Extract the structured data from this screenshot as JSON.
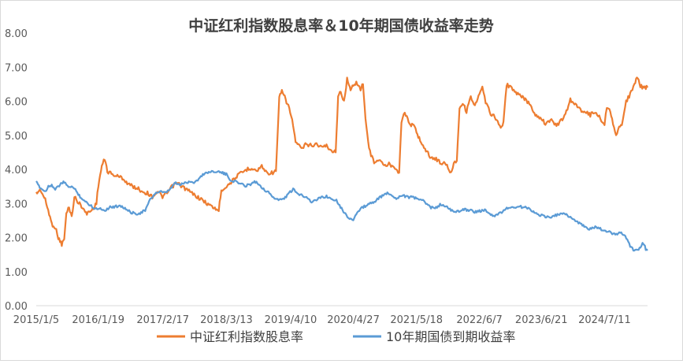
{
  "chart_data": {
    "type": "line",
    "title": "中证红利指数股息率＆10年期国债收益率走势",
    "xlabel": "",
    "ylabel": "",
    "ylim": [
      0,
      8
    ],
    "y_ticks": [
      "0.00",
      "1.00",
      "2.00",
      "3.00",
      "4.00",
      "5.00",
      "6.00",
      "7.00",
      "8.00"
    ],
    "x_ticks": [
      "2015/1/5",
      "2016/1/19",
      "2017/2/17",
      "2018/3/13",
      "2019/4/10",
      "2020/4/27",
      "2021/5/18",
      "2022/6/7",
      "2023/6/21",
      "2024/7/11"
    ],
    "x_range": [
      "2015/1/5",
      "2025/3/31"
    ],
    "grid": false,
    "legend_position": "bottom",
    "series": [
      {
        "name": "中证红利指数股息率",
        "color": "#ED7D31",
        "points": [
          [
            "2015/1/5",
            3.3
          ],
          [
            "2015/2/1",
            3.4
          ],
          [
            "2015/3/1",
            3.1
          ],
          [
            "2015/3/25",
            2.7
          ],
          [
            "2015/4/10",
            2.4
          ],
          [
            "2015/5/1",
            2.3
          ],
          [
            "2015/5/20",
            2.0
          ],
          [
            "2015/6/10",
            1.8
          ],
          [
            "2015/6/25",
            1.95
          ],
          [
            "2015/7/8",
            2.7
          ],
          [
            "2015/7/25",
            2.9
          ],
          [
            "2015/8/10",
            2.6
          ],
          [
            "2015/8/26",
            3.2
          ],
          [
            "2015/9/15",
            3.05
          ],
          [
            "2015/10/15",
            2.9
          ],
          [
            "2015/11/5",
            2.7
          ],
          [
            "2015/12/10",
            2.8
          ],
          [
            "2016/1/8",
            3.0
          ],
          [
            "2016/1/20",
            3.55
          ],
          [
            "2016/2/10",
            4.1
          ],
          [
            "2016/2/28",
            4.3
          ],
          [
            "2016/3/15",
            3.95
          ],
          [
            "2016/4/15",
            3.85
          ],
          [
            "2016/5/15",
            3.8
          ],
          [
            "2016/6/15",
            3.75
          ],
          [
            "2016/7/15",
            3.6
          ],
          [
            "2016/8/15",
            3.5
          ],
          [
            "2016/9/15",
            3.45
          ],
          [
            "2016/10/15",
            3.35
          ],
          [
            "2016/11/15",
            3.3
          ],
          [
            "2016/12/15",
            3.2
          ],
          [
            "2017/1/15",
            3.35
          ],
          [
            "2017/2/15",
            3.2
          ],
          [
            "2017/3/15",
            3.3
          ],
          [
            "2017/4/15",
            3.5
          ],
          [
            "2017/5/15",
            3.6
          ],
          [
            "2017/6/15",
            3.5
          ],
          [
            "2017/7/15",
            3.4
          ],
          [
            "2017/8/15",
            3.3
          ],
          [
            "2017/9/15",
            3.2
          ],
          [
            "2017/10/15",
            3.1
          ],
          [
            "2017/11/15",
            3.0
          ],
          [
            "2017/12/15",
            2.9
          ],
          [
            "2018/1/25",
            2.8
          ],
          [
            "2018/2/10",
            3.4
          ],
          [
            "2018/3/13",
            3.5
          ],
          [
            "2018/4/15",
            3.65
          ],
          [
            "2018/5/15",
            3.8
          ],
          [
            "2018/6/15",
            3.9
          ],
          [
            "2018/7/15",
            4.0
          ],
          [
            "2018/8/15",
            4.05
          ],
          [
            "2018/9/15",
            3.95
          ],
          [
            "2018/10/15",
            4.1
          ],
          [
            "2018/11/15",
            3.9
          ],
          [
            "2018/12/15",
            3.9
          ],
          [
            "2019/1/10",
            3.95
          ],
          [
            "2019/1/30",
            6.1
          ],
          [
            "2019/2/15",
            6.3
          ],
          [
            "2019/3/10",
            6.05
          ],
          [
            "2019/4/1",
            5.8
          ],
          [
            "2019/4/25",
            5.3
          ],
          [
            "2019/5/10",
            4.8
          ],
          [
            "2019/6/15",
            4.6
          ],
          [
            "2019/7/15",
            4.75
          ],
          [
            "2019/8/15",
            4.7
          ],
          [
            "2019/9/15",
            4.75
          ],
          [
            "2019/10/15",
            4.65
          ],
          [
            "2019/11/15",
            4.7
          ],
          [
            "2019/12/15",
            4.55
          ],
          [
            "2020/1/10",
            4.5
          ],
          [
            "2020/1/25",
            6.1
          ],
          [
            "2020/2/10",
            6.3
          ],
          [
            "2020/3/1",
            6.0
          ],
          [
            "2020/3/20",
            6.65
          ],
          [
            "2020/4/10",
            6.3
          ],
          [
            "2020/4/27",
            6.5
          ],
          [
            "2020/5/15",
            6.55
          ],
          [
            "2020/6/10",
            6.35
          ],
          [
            "2020/6/25",
            6.5
          ],
          [
            "2020/7/10",
            5.5
          ],
          [
            "2020/8/1",
            4.6
          ],
          [
            "2020/9/1",
            4.2
          ],
          [
            "2020/10/1",
            4.3
          ],
          [
            "2020/11/1",
            4.1
          ],
          [
            "2020/12/1",
            4.15
          ],
          [
            "2021/1/1",
            4.1
          ],
          [
            "2021/2/1",
            3.9
          ],
          [
            "2021/2/15",
            5.4
          ],
          [
            "2021/3/1",
            5.65
          ],
          [
            "2021/3/20",
            5.55
          ],
          [
            "2021/4/10",
            5.3
          ],
          [
            "2021/5/1",
            5.3
          ],
          [
            "2021/5/18",
            5.1
          ],
          [
            "2021/6/15",
            4.8
          ],
          [
            "2021/7/15",
            4.55
          ],
          [
            "2021/8/15",
            4.35
          ],
          [
            "2021/9/15",
            4.3
          ],
          [
            "2021/10/15",
            4.2
          ],
          [
            "2021/11/15",
            4.15
          ],
          [
            "2021/12/15",
            3.9
          ],
          [
            "2022/1/1",
            4.2
          ],
          [
            "2022/1/20",
            4.25
          ],
          [
            "2022/2/5",
            5.8
          ],
          [
            "2022/2/25",
            5.95
          ],
          [
            "2022/3/20",
            5.7
          ],
          [
            "2022/4/15",
            6.15
          ],
          [
            "2022/5/10",
            5.85
          ],
          [
            "2022/6/7",
            6.2
          ],
          [
            "2022/6/25",
            6.4
          ],
          [
            "2022/7/15",
            5.95
          ],
          [
            "2022/8/15",
            5.65
          ],
          [
            "2022/9/15",
            5.5
          ],
          [
            "2022/10/15",
            5.2
          ],
          [
            "2022/11/1",
            5.4
          ],
          [
            "2022/11/20",
            6.5
          ],
          [
            "2022/12/15",
            6.4
          ],
          [
            "2023/1/15",
            6.25
          ],
          [
            "2023/2/15",
            6.15
          ],
          [
            "2023/3/15",
            6.05
          ],
          [
            "2023/4/15",
            5.9
          ],
          [
            "2023/5/15",
            5.6
          ],
          [
            "2023/6/21",
            5.5
          ],
          [
            "2023/7/15",
            5.35
          ],
          [
            "2023/8/15",
            5.45
          ],
          [
            "2023/9/15",
            5.3
          ],
          [
            "2023/10/15",
            5.4
          ],
          [
            "2023/11/15",
            5.6
          ],
          [
            "2023/12/15",
            6.05
          ],
          [
            "2024/1/15",
            5.9
          ],
          [
            "2024/2/15",
            5.75
          ],
          [
            "2024/3/15",
            5.7
          ],
          [
            "2024/4/15",
            5.6
          ],
          [
            "2024/5/15",
            5.7
          ],
          [
            "2024/6/15",
            5.5
          ],
          [
            "2024/7/11",
            5.3
          ],
          [
            "2024/7/25",
            5.85
          ],
          [
            "2024/8/15",
            5.75
          ],
          [
            "2024/9/1",
            5.3
          ],
          [
            "2024/9/20",
            5.0
          ],
          [
            "2024/10/8",
            5.2
          ],
          [
            "2024/10/25",
            5.3
          ],
          [
            "2024/11/20",
            6.0
          ],
          [
            "2024/12/15",
            6.2
          ],
          [
            "2025/1/10",
            6.5
          ],
          [
            "2025/1/25",
            6.7
          ],
          [
            "2025/2/15",
            6.45
          ],
          [
            "2025/3/10",
            6.4
          ],
          [
            "2025/3/31",
            6.4
          ]
        ]
      },
      {
        "name": "10年期国债到期收益率",
        "color": "#5B9BD5",
        "points": [
          [
            "2015/1/5",
            3.62
          ],
          [
            "2015/2/1",
            3.45
          ],
          [
            "2015/3/1",
            3.35
          ],
          [
            "2015/3/20",
            3.5
          ],
          [
            "2015/4/10",
            3.55
          ],
          [
            "2015/5/1",
            3.4
          ],
          [
            "2015/5/20",
            3.5
          ],
          [
            "2015/6/10",
            3.6
          ],
          [
            "2015/6/25",
            3.62
          ],
          [
            "2015/7/15",
            3.5
          ],
          [
            "2015/8/10",
            3.5
          ],
          [
            "2015/9/1",
            3.4
          ],
          [
            "2015/10/1",
            3.2
          ],
          [
            "2015/11/1",
            3.05
          ],
          [
            "2015/12/1",
            2.95
          ],
          [
            "2016/1/1",
            2.85
          ],
          [
            "2016/2/1",
            2.85
          ],
          [
            "2016/3/1",
            2.8
          ],
          [
            "2016/4/1",
            2.9
          ],
          [
            "2016/5/1",
            2.9
          ],
          [
            "2016/6/1",
            2.95
          ],
          [
            "2016/7/1",
            2.85
          ],
          [
            "2016/8/1",
            2.75
          ],
          [
            "2016/9/1",
            2.7
          ],
          [
            "2016/10/1",
            2.72
          ],
          [
            "2016/11/1",
            2.8
          ],
          [
            "2016/12/1",
            3.1
          ],
          [
            "2017/1/1",
            3.3
          ],
          [
            "2017/2/1",
            3.35
          ],
          [
            "2017/3/1",
            3.3
          ],
          [
            "2017/4/1",
            3.4
          ],
          [
            "2017/5/1",
            3.6
          ],
          [
            "2017/6/1",
            3.55
          ],
          [
            "2017/7/1",
            3.6
          ],
          [
            "2017/8/1",
            3.65
          ],
          [
            "2017/9/1",
            3.62
          ],
          [
            "2017/10/1",
            3.75
          ],
          [
            "2017/11/1",
            3.9
          ],
          [
            "2017/12/1",
            3.92
          ],
          [
            "2018/1/1",
            3.95
          ],
          [
            "2018/2/1",
            3.92
          ],
          [
            "2018/3/13",
            3.85
          ],
          [
            "2018/4/1",
            3.7
          ],
          [
            "2018/5/1",
            3.65
          ],
          [
            "2018/6/1",
            3.6
          ],
          [
            "2018/7/1",
            3.52
          ],
          [
            "2018/8/1",
            3.55
          ],
          [
            "2018/9/1",
            3.65
          ],
          [
            "2018/10/1",
            3.55
          ],
          [
            "2018/11/1",
            3.4
          ],
          [
            "2018/12/1",
            3.3
          ],
          [
            "2019/1/1",
            3.15
          ],
          [
            "2019/2/1",
            3.1
          ],
          [
            "2019/3/1",
            3.15
          ],
          [
            "2019/4/1",
            3.3
          ],
          [
            "2019/4/25",
            3.42
          ],
          [
            "2019/5/15",
            3.3
          ],
          [
            "2019/6/15",
            3.25
          ],
          [
            "2019/7/15",
            3.2
          ],
          [
            "2019/8/15",
            3.05
          ],
          [
            "2019/9/15",
            3.1
          ],
          [
            "2019/10/15",
            3.2
          ],
          [
            "2019/11/15",
            3.2
          ],
          [
            "2019/12/15",
            3.15
          ],
          [
            "2020/1/15",
            3.1
          ],
          [
            "2020/2/15",
            2.85
          ],
          [
            "2020/3/15",
            2.65
          ],
          [
            "2020/4/10",
            2.55
          ],
          [
            "2020/4/27",
            2.5
          ],
          [
            "2020/5/15",
            2.7
          ],
          [
            "2020/6/15",
            2.85
          ],
          [
            "2020/7/15",
            2.95
          ],
          [
            "2020/8/15",
            3.0
          ],
          [
            "2020/9/15",
            3.1
          ],
          [
            "2020/10/15",
            3.2
          ],
          [
            "2020/11/15",
            3.3
          ],
          [
            "2020/12/15",
            3.25
          ],
          [
            "2021/1/15",
            3.15
          ],
          [
            "2021/2/15",
            3.25
          ],
          [
            "2021/3/15",
            3.2
          ],
          [
            "2021/4/15",
            3.18
          ],
          [
            "2021/5/18",
            3.15
          ],
          [
            "2021/6/15",
            3.12
          ],
          [
            "2021/7/15",
            3.0
          ],
          [
            "2021/8/15",
            2.88
          ],
          [
            "2021/9/15",
            2.88
          ],
          [
            "2021/10/15",
            2.98
          ],
          [
            "2021/11/15",
            2.9
          ],
          [
            "2021/12/15",
            2.8
          ],
          [
            "2022/1/15",
            2.75
          ],
          [
            "2022/2/15",
            2.8
          ],
          [
            "2022/3/15",
            2.82
          ],
          [
            "2022/4/15",
            2.8
          ],
          [
            "2022/5/15",
            2.75
          ],
          [
            "2022/6/7",
            2.78
          ],
          [
            "2022/7/15",
            2.8
          ],
          [
            "2022/8/15",
            2.65
          ],
          [
            "2022/9/15",
            2.65
          ],
          [
            "2022/10/15",
            2.72
          ],
          [
            "2022/11/15",
            2.85
          ],
          [
            "2022/12/15",
            2.88
          ],
          [
            "2023/1/15",
            2.9
          ],
          [
            "2023/2/15",
            2.9
          ],
          [
            "2023/3/15",
            2.88
          ],
          [
            "2023/4/15",
            2.83
          ],
          [
            "2023/5/15",
            2.72
          ],
          [
            "2023/6/21",
            2.65
          ],
          [
            "2023/7/15",
            2.62
          ],
          [
            "2023/8/15",
            2.57
          ],
          [
            "2023/9/15",
            2.65
          ],
          [
            "2023/10/15",
            2.7
          ],
          [
            "2023/11/15",
            2.68
          ],
          [
            "2023/12/15",
            2.6
          ],
          [
            "2024/1/15",
            2.5
          ],
          [
            "2024/2/15",
            2.4
          ],
          [
            "2024/3/15",
            2.3
          ],
          [
            "2024/4/15",
            2.25
          ],
          [
            "2024/5/15",
            2.3
          ],
          [
            "2024/6/15",
            2.25
          ],
          [
            "2024/7/11",
            2.2
          ],
          [
            "2024/8/15",
            2.15
          ],
          [
            "2024/9/15",
            2.1
          ],
          [
            "2024/10/15",
            2.15
          ],
          [
            "2024/11/15",
            2.05
          ],
          [
            "2024/12/15",
            1.75
          ],
          [
            "2025/1/10",
            1.6
          ],
          [
            "2025/1/25",
            1.65
          ],
          [
            "2025/2/15",
            1.7
          ],
          [
            "2025/2/28",
            1.88
          ],
          [
            "2025/3/10",
            1.8
          ],
          [
            "2025/3/20",
            1.65
          ],
          [
            "2025/3/31",
            1.62
          ]
        ]
      }
    ]
  }
}
